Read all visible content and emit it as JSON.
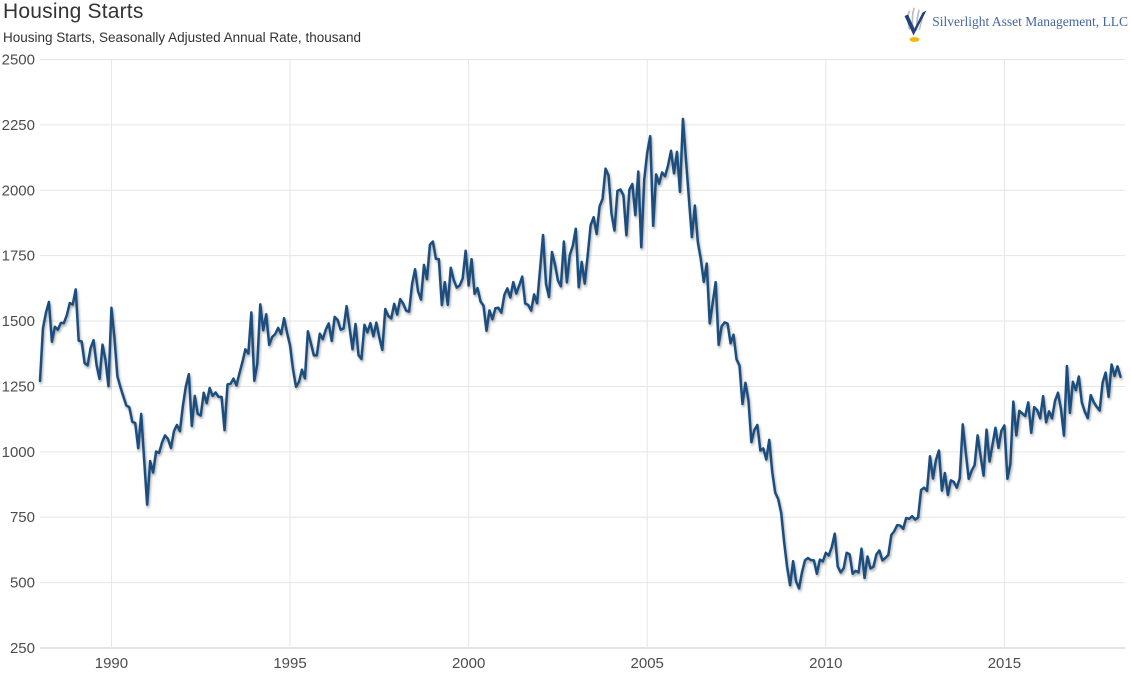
{
  "header": {
    "title": "Housing Starts",
    "subtitle": "Housing Starts, Seasonally Adjusted Annual Rate, thousand",
    "brand": "Silverlight Asset Management, LLC"
  },
  "colors": {
    "line": "#1b4e7f",
    "grid": "#e6e6e6",
    "axis": "#c9c9c9",
    "tick_text": "#4d4d4d",
    "title_text": "#333333",
    "brand_text": "#44659f",
    "brand_navy": "#24427a",
    "brand_gray": "#b4bcc4",
    "brand_gold": "#f2b712"
  },
  "chart_data": {
    "type": "line",
    "title": "Housing Starts",
    "subtitle": "Housing Starts, Seasonally Adjusted Annual Rate, thousand",
    "ylabel": "thousand",
    "grid": true,
    "legend": "none",
    "ylim": [
      250,
      2500
    ],
    "y_ticks": [
      250,
      500,
      750,
      1000,
      1250,
      1500,
      1750,
      2000,
      2250,
      2500
    ],
    "x_ticks": [
      1990,
      1995,
      2000,
      2005,
      2010,
      2015
    ],
    "xlim": [
      1988.0,
      2018.25
    ],
    "frequency": "monthly",
    "start_month": "1988-01",
    "end_month": "2018-04",
    "series": [
      {
        "name": "Housing Starts",
        "values": [
          1271,
          1473,
          1532,
          1573,
          1421,
          1478,
          1467,
          1493,
          1492,
          1522,
          1569,
          1563,
          1621,
          1425,
          1422,
          1339,
          1331,
          1397,
          1427,
          1332,
          1279,
          1410,
          1351,
          1251,
          1551,
          1437,
          1289,
          1248,
          1212,
          1177,
          1171,
          1115,
          1110,
          1014,
          1145,
          969,
          798,
          965,
          921,
          1001,
          996,
          1036,
          1063,
          1049,
          1015,
          1079,
          1103,
          1079,
          1176,
          1250,
          1297,
          1099,
          1214,
          1145,
          1139,
          1226,
          1186,
          1244,
          1214,
          1227,
          1210,
          1210,
          1083,
          1258,
          1260,
          1280,
          1254,
          1300,
          1343,
          1392,
          1376,
          1533,
          1272,
          1337,
          1564,
          1465,
          1526,
          1409,
          1439,
          1450,
          1474,
          1450,
          1511,
          1455,
          1407,
          1316,
          1249,
          1267,
          1314,
          1281,
          1461,
          1416,
          1369,
          1369,
          1452,
          1431,
          1467,
          1491,
          1424,
          1516,
          1504,
          1467,
          1472,
          1557,
          1475,
          1392,
          1489,
          1370,
          1355,
          1486,
          1457,
          1492,
          1442,
          1494,
          1437,
          1390,
          1546,
          1520,
          1510,
          1566,
          1525,
          1584,
          1567,
          1540,
          1536,
          1641,
          1698,
          1614,
          1582,
          1715,
          1660,
          1792,
          1804,
          1738,
          1737,
          1561,
          1649,
          1562,
          1704,
          1657,
          1628,
          1636,
          1663,
          1769,
          1636,
          1737,
          1604,
          1626,
          1575,
          1559,
          1463,
          1541,
          1507,
          1549,
          1551,
          1532,
          1600,
          1625,
          1590,
          1649,
          1605,
          1636,
          1670,
          1567,
          1562,
          1540,
          1602,
          1568,
          1698,
          1829,
          1642,
          1592,
          1764,
          1717,
          1655,
          1633,
          1804,
          1648,
          1753,
          1788,
          1853,
          1629,
          1726,
          1643,
          1751,
          1867,
          1897,
          1833,
          1939,
          1967,
          2083,
          2057,
          1911,
          1846,
          1998,
          2003,
          1981,
          1828,
          2002,
          2024,
          1905,
          2072,
          1782,
          2042,
          2144,
          2207,
          1864,
          2061,
          2025,
          2068,
          2054,
          2095,
          2151,
          2065,
          2147,
          1994,
          2273,
          2119,
          1969,
          1821,
          1942,
          1802,
          1737,
          1650,
          1720,
          1491,
          1570,
          1649,
          1409,
          1480,
          1495,
          1490,
          1415,
          1448,
          1354,
          1330,
          1183,
          1264,
          1197,
          1037,
          1084,
          1103,
          1005,
          1013,
          971,
          1046,
          923,
          844,
          820,
          767,
          655,
          560,
          490,
          582,
          505,
          478,
          540,
          585,
          594,
          586,
          585,
          534,
          588,
          581,
          614,
          604,
          636,
          687,
          562,
          539,
          555,
          614,
          608,
          534,
          545,
          539,
          630,
          518,
          600,
          554,
          561,
          608,
          623,
          585,
          594,
          606,
          682,
          697,
          720,
          718,
          706,
          747,
          744,
          754,
          741,
          749,
          854,
          863,
          851,
          983,
          898,
          969,
          1005,
          852,
          919,
          835,
          891,
          885,
          863,
          899,
          1105,
          999,
          897,
          928,
          950,
          1063,
          984,
          909,
          1085,
          963,
          1028,
          1092,
          1015,
          1081,
          1101,
          897,
          954,
          1192,
          1063,
          1157,
          1147,
          1137,
          1189,
          1073,
          1171,
          1160,
          1128,
          1213,
          1113,
          1155,
          1128,
          1195,
          1226,
          1164,
          1062,
          1328,
          1149,
          1268,
          1236,
          1288,
          1189,
          1154,
          1129,
          1217,
          1190,
          1172,
          1158,
          1265,
          1303,
          1210,
          1334,
          1290,
          1327,
          1287
        ]
      }
    ]
  }
}
